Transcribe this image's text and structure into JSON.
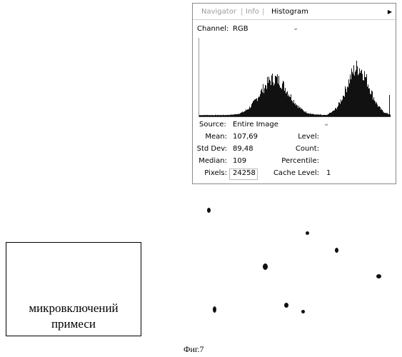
{
  "tabs": [
    {
      "label": "Navigator",
      "active": false
    },
    {
      "label": "Info",
      "active": false
    },
    {
      "label": "Histogram",
      "active": true
    }
  ],
  "channel": {
    "label": "Channel:",
    "value": "RGB"
  },
  "source": {
    "label": "Source:",
    "value": "Entire Image"
  },
  "stats": {
    "mean": {
      "label": "Mean:",
      "value": "107,69"
    },
    "std_dev": {
      "label": "Std Dev:",
      "value": "89,48"
    },
    "median": {
      "label": "Median:",
      "value": "109"
    },
    "pixels": {
      "label": "Pixels:",
      "value": "24258"
    },
    "level": {
      "label": "Level:",
      "value": ""
    },
    "count": {
      "label": "Count:",
      "value": ""
    },
    "percentile": {
      "label": "Percentile:",
      "value": ""
    },
    "cache_level": {
      "label": "Cache Level:",
      "value": "1"
    }
  },
  "label_box": {
    "line1": "микровключений",
    "line2": "примеси"
  },
  "caption": "Фиг.7",
  "colors": {
    "ink": "#111111",
    "panel_border": "#8a8a8a"
  }
}
